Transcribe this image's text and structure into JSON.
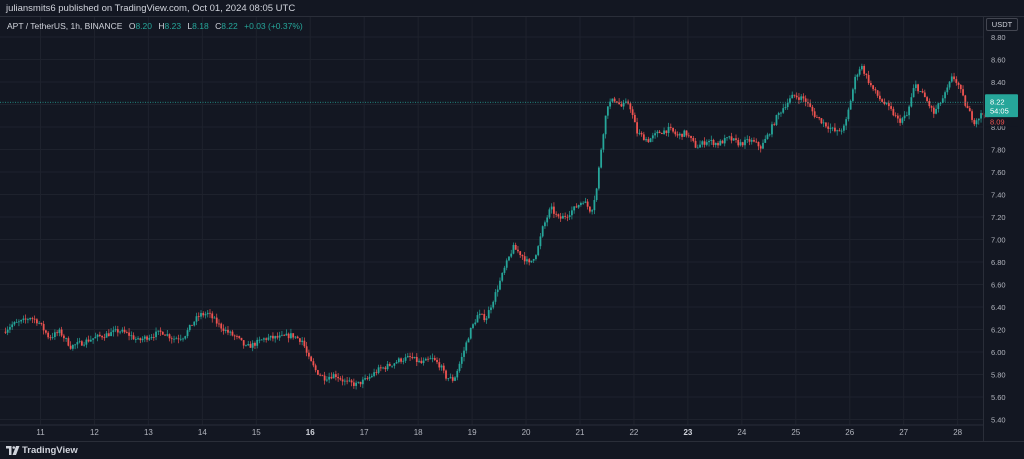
{
  "header": {
    "published_text": "juliansmits6 published on TradingView.com, Oct 01, 2024 08:05 UTC"
  },
  "legend": {
    "symbol": "APT / TetherUS, 1h, BINANCE",
    "open_key": "O",
    "open": "8.20",
    "high_key": "H",
    "high": "8.23",
    "low_key": "L",
    "low": "8.18",
    "close_key": "C",
    "close": "8.22",
    "change": "+0.03 (+0.37%)"
  },
  "currency_button": "USDT",
  "price_tag": {
    "price": "8.22",
    "countdown": "54:05",
    "label_low": "8.09"
  },
  "footer": {
    "brand": "TradingView",
    "logo": "tradingview-logo-icon"
  },
  "colors": {
    "up": "#26a69a",
    "down": "#ef5350",
    "background": "#131722",
    "grid": "#1e222d",
    "text": "#b2b5be"
  },
  "chart_data": {
    "type": "candlestick",
    "interval": "1h",
    "x_ticks": [
      "11",
      "12",
      "13",
      "14",
      "15",
      "16",
      "17",
      "18",
      "19",
      "20",
      "21",
      "22",
      "23",
      "24",
      "25",
      "26",
      "27",
      "28"
    ],
    "x_tick_bold": [
      "16",
      "23"
    ],
    "y_ticks": [
      "5.40",
      "5.60",
      "5.80",
      "6.00",
      "6.20",
      "6.40",
      "6.60",
      "6.80",
      "7.00",
      "7.20",
      "7.40",
      "7.60",
      "7.80",
      "8.00",
      "8.20",
      "8.40",
      "8.60",
      "8.80"
    ],
    "ylim": [
      5.36,
      8.9
    ],
    "xlim": [
      10.35,
      28.75
    ],
    "last_price": 8.22,
    "path": [
      [
        10.35,
        6.18
      ],
      [
        10.5,
        6.24
      ],
      [
        10.75,
        6.28
      ],
      [
        10.85,
        6.31
      ],
      [
        11.0,
        6.27
      ],
      [
        11.2,
        6.13
      ],
      [
        11.4,
        6.18
      ],
      [
        11.6,
        6.05
      ],
      [
        11.8,
        6.08
      ],
      [
        12.0,
        6.12
      ],
      [
        12.3,
        6.16
      ],
      [
        12.5,
        6.19
      ],
      [
        12.7,
        6.15
      ],
      [
        12.85,
        6.1
      ],
      [
        13.0,
        6.13
      ],
      [
        13.3,
        6.18
      ],
      [
        13.5,
        6.12
      ],
      [
        13.7,
        6.14
      ],
      [
        13.9,
        6.28
      ],
      [
        14.0,
        6.33
      ],
      [
        14.15,
        6.34
      ],
      [
        14.35,
        6.24
      ],
      [
        14.5,
        6.18
      ],
      [
        14.7,
        6.12
      ],
      [
        14.85,
        6.04
      ],
      [
        15.0,
        6.07
      ],
      [
        15.2,
        6.12
      ],
      [
        15.5,
        6.13
      ],
      [
        15.7,
        6.15
      ],
      [
        15.9,
        6.1
      ],
      [
        16.0,
        5.95
      ],
      [
        16.15,
        5.83
      ],
      [
        16.3,
        5.77
      ],
      [
        16.5,
        5.8
      ],
      [
        16.7,
        5.73
      ],
      [
        16.9,
        5.71
      ],
      [
        17.1,
        5.76
      ],
      [
        17.3,
        5.84
      ],
      [
        17.5,
        5.88
      ],
      [
        17.7,
        5.93
      ],
      [
        17.9,
        5.95
      ],
      [
        18.1,
        5.9
      ],
      [
        18.3,
        5.94
      ],
      [
        18.45,
        5.88
      ],
      [
        18.55,
        5.78
      ],
      [
        18.7,
        5.75
      ],
      [
        18.85,
        5.95
      ],
      [
        19.0,
        6.18
      ],
      [
        19.15,
        6.33
      ],
      [
        19.3,
        6.3
      ],
      [
        19.5,
        6.55
      ],
      [
        19.65,
        6.75
      ],
      [
        19.8,
        6.93
      ],
      [
        19.95,
        6.87
      ],
      [
        20.1,
        6.78
      ],
      [
        20.25,
        6.9
      ],
      [
        20.35,
        7.1
      ],
      [
        20.5,
        7.28
      ],
      [
        20.65,
        7.18
      ],
      [
        20.8,
        7.22
      ],
      [
        20.95,
        7.28
      ],
      [
        21.1,
        7.35
      ],
      [
        21.25,
        7.25
      ],
      [
        21.35,
        7.45
      ],
      [
        21.45,
        7.88
      ],
      [
        21.55,
        8.2
      ],
      [
        21.7,
        8.25
      ],
      [
        21.8,
        8.18
      ],
      [
        21.95,
        8.22
      ],
      [
        22.1,
        7.95
      ],
      [
        22.3,
        7.88
      ],
      [
        22.5,
        7.95
      ],
      [
        22.7,
        7.98
      ],
      [
        22.85,
        7.92
      ],
      [
        23.0,
        7.95
      ],
      [
        23.2,
        7.82
      ],
      [
        23.4,
        7.88
      ],
      [
        23.6,
        7.85
      ],
      [
        23.8,
        7.9
      ],
      [
        24.0,
        7.85
      ],
      [
        24.2,
        7.88
      ],
      [
        24.4,
        7.82
      ],
      [
        24.55,
        7.95
      ],
      [
        24.7,
        8.1
      ],
      [
        24.85,
        8.2
      ],
      [
        25.0,
        8.28
      ],
      [
        25.2,
        8.25
      ],
      [
        25.4,
        8.1
      ],
      [
        25.6,
        8.02
      ],
      [
        25.8,
        7.95
      ],
      [
        25.95,
        8.0
      ],
      [
        26.05,
        8.22
      ],
      [
        26.15,
        8.45
      ],
      [
        26.25,
        8.55
      ],
      [
        26.45,
        8.35
      ],
      [
        26.6,
        8.25
      ],
      [
        26.8,
        8.15
      ],
      [
        26.95,
        8.05
      ],
      [
        27.1,
        8.1
      ],
      [
        27.25,
        8.38
      ],
      [
        27.45,
        8.25
      ],
      [
        27.6,
        8.12
      ],
      [
        27.8,
        8.28
      ],
      [
        27.95,
        8.45
      ],
      [
        28.05,
        8.38
      ],
      [
        28.2,
        8.18
      ],
      [
        28.35,
        8.05
      ],
      [
        28.5,
        8.12
      ],
      [
        28.62,
        8.08
      ],
      [
        28.75,
        8.22
      ]
    ]
  }
}
